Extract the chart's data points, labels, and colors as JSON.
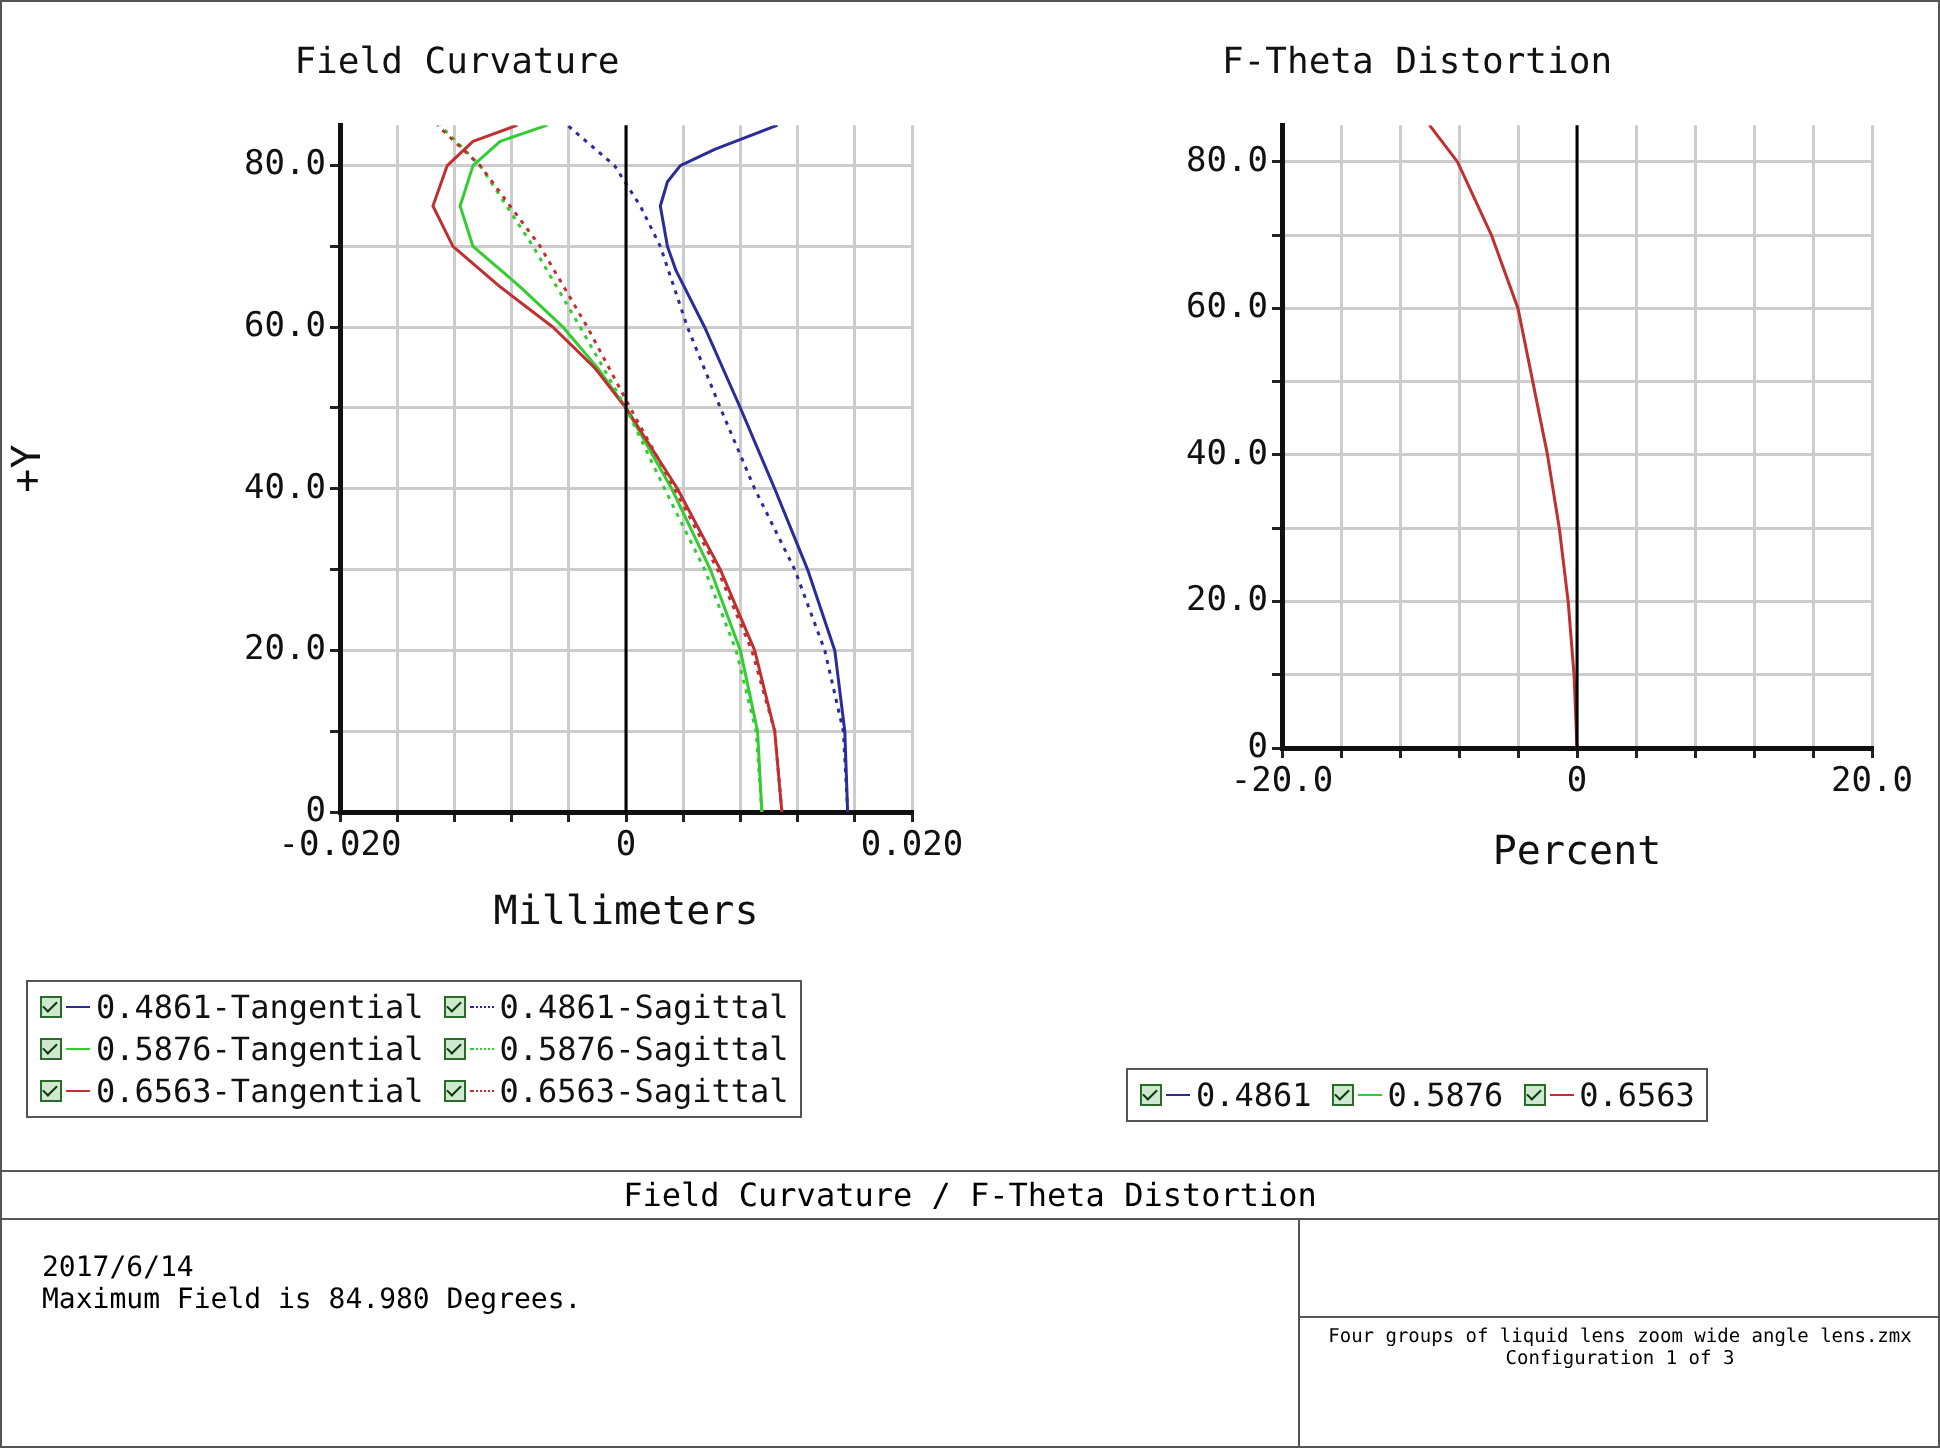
{
  "chart_data": [
    {
      "type": "line",
      "title": "Field Curvature",
      "xlabel": "Millimeters",
      "ylabel": "+Y",
      "orientation": "horizontal",
      "grid": true,
      "legend": "bottom",
      "marker": "none",
      "xlim": [
        -0.02,
        0.02
      ],
      "xticks": [
        {
          "value": -0.02,
          "label": "-0.020"
        },
        {
          "value": -0.016,
          "label": null
        },
        {
          "value": -0.012,
          "label": null
        },
        {
          "value": -0.008,
          "label": null
        },
        {
          "value": -0.004,
          "label": null
        },
        0,
        {
          "value": 0.004,
          "label": null
        },
        {
          "value": 0.008,
          "label": null
        },
        {
          "value": 0.012,
          "label": null
        },
        {
          "value": 0.016,
          "label": null
        },
        {
          "value": 0.02,
          "label": "0.020"
        }
      ],
      "ylim": [
        0,
        85
      ],
      "yticks": [
        0,
        {
          "value": 10,
          "label": null
        },
        {
          "value": 20,
          "label": "20.0"
        },
        {
          "value": 30,
          "label": null
        },
        {
          "value": 40,
          "label": "40.0"
        },
        {
          "value": 50,
          "label": null
        },
        {
          "value": 60,
          "label": "60.0"
        },
        {
          "value": 70,
          "label": null
        },
        {
          "value": 80,
          "label": "80.0"
        }
      ],
      "ref_lines": [
        {
          "axis": "x",
          "value": 0,
          "color": "#000000"
        }
      ],
      "series": [
        {
          "name": "0.4861-Tangential",
          "color": "#2b2b9a",
          "line_style": "solid",
          "x": [
            0,
            10,
            20,
            30,
            40,
            50,
            60,
            67,
            70,
            75,
            78,
            80,
            82,
            85
          ],
          "values": [
            0.0155,
            0.0153,
            0.0146,
            0.0127,
            0.0104,
            0.008,
            0.0055,
            0.0035,
            0.0029,
            0.0024,
            0.0029,
            0.0038,
            0.0062,
            0.0106
          ]
        },
        {
          "name": "0.5876-Tangential",
          "color": "#33cc33",
          "line_style": "solid",
          "x": [
            0,
            10,
            20,
            30,
            40,
            50,
            55,
            60,
            65,
            70,
            75,
            80,
            83,
            85
          ],
          "values": [
            0.0095,
            0.0092,
            0.008,
            0.0059,
            0.0032,
            0,
            -0.002,
            -0.0044,
            -0.0074,
            -0.0107,
            -0.0116,
            -0.0107,
            -0.0088,
            -0.0055
          ]
        },
        {
          "name": "0.6563-Tangential",
          "color": "#c03030",
          "line_style": "solid",
          "x": [
            0,
            10,
            20,
            30,
            40,
            50,
            55,
            60,
            65,
            70,
            75,
            80,
            83,
            85
          ],
          "values": [
            0.0109,
            0.0104,
            0.009,
            0.0066,
            0.0036,
            0,
            -0.0022,
            -0.0051,
            -0.0088,
            -0.0121,
            -0.0135,
            -0.0125,
            -0.0107,
            -0.0076
          ]
        },
        {
          "name": "0.4861-Sagittal",
          "color": "#2b2b9a",
          "line_style": "dotted",
          "x": [
            0,
            10,
            20,
            30,
            40,
            50,
            60,
            70,
            75,
            80,
            85
          ],
          "values": [
            0.0155,
            0.0152,
            0.0139,
            0.0118,
            0.009,
            0.0066,
            0.0043,
            0.0024,
            0.001,
            -0.0008,
            -0.0041
          ]
        },
        {
          "name": "0.5876-Sagittal",
          "color": "#33cc33",
          "line_style": "dotted",
          "x": [
            0,
            10,
            20,
            30,
            40,
            50,
            60,
            70,
            80,
            85
          ],
          "values": [
            0.0095,
            0.0091,
            0.0077,
            0.0055,
            0.0027,
            0,
            -0.0032,
            -0.0065,
            -0.0102,
            -0.013
          ]
        },
        {
          "name": "0.6563-Sagittal",
          "color": "#c03030",
          "line_style": "dotted",
          "x": [
            0,
            10,
            20,
            30,
            40,
            50,
            60,
            70,
            80,
            85
          ],
          "values": [
            0.0109,
            0.0104,
            0.0088,
            0.0064,
            0.0034,
            0.0003,
            -0.0027,
            -0.006,
            -0.0102,
            -0.0132
          ]
        }
      ]
    },
    {
      "type": "line",
      "title": "F-Theta Distortion",
      "xlabel": "Percent",
      "orientation": "horizontal",
      "grid": true,
      "legend": "bottom",
      "marker": "none",
      "xlim": [
        -20,
        20
      ],
      "xticks": [
        {
          "value": -20,
          "label": "-20.0"
        },
        {
          "value": -16,
          "label": null
        },
        {
          "value": -12,
          "label": null
        },
        {
          "value": -8,
          "label": null
        },
        {
          "value": -4,
          "label": null
        },
        0,
        {
          "value": 4,
          "label": null
        },
        {
          "value": 8,
          "label": null
        },
        {
          "value": 12,
          "label": null
        },
        {
          "value": 16,
          "label": null
        },
        {
          "value": 20,
          "label": "20.0"
        }
      ],
      "ylim": [
        0,
        85
      ],
      "yticks": [
        0,
        {
          "value": 10,
          "label": null
        },
        {
          "value": 20,
          "label": "20.0"
        },
        {
          "value": 30,
          "label": null
        },
        {
          "value": 40,
          "label": "40.0"
        },
        {
          "value": 50,
          "label": null
        },
        {
          "value": 60,
          "label": "60.0"
        },
        {
          "value": 70,
          "label": null
        },
        {
          "value": 80,
          "label": "80.0"
        }
      ],
      "ref_lines": [
        {
          "axis": "x",
          "value": 0,
          "color": "#000000"
        }
      ],
      "series": [
        {
          "name": "0.4861",
          "color": "#2b2b9a",
          "line_style": "solid"
        },
        {
          "name": "0.5876",
          "color": "#33cc33",
          "line_style": "solid"
        },
        {
          "name": "0.6563",
          "color": "#c03030",
          "line_style": "solid",
          "x": [
            0,
            10,
            20,
            30,
            40,
            50,
            60,
            70,
            80,
            85
          ],
          "values": [
            0,
            -0.2,
            -0.6,
            -1.2,
            -2,
            -3,
            -4,
            -5.8,
            -8.1,
            -10
          ]
        }
      ]
    },
    {
      "type": "other",
      "title": "Field Curvature / F-Theta Distortion",
      "annotations": [
        "2017/6/14",
        "Maximum Field is 84.980 Degrees.",
        "Four groups of liquid lens zoom wide angle lens.zmx",
        "Configuration 1 of 3"
      ]
    }
  ]
}
